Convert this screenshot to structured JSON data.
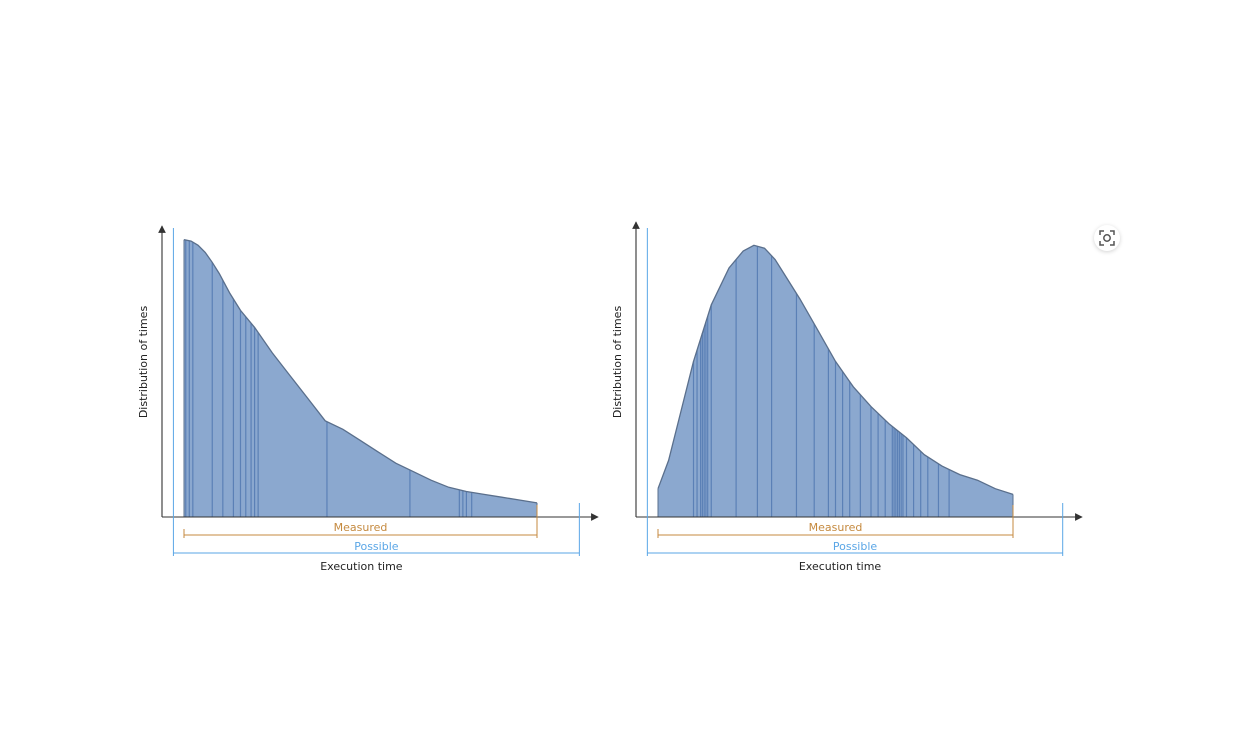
{
  "colors": {
    "fill": "#8ba8cf",
    "stripe": "#5b80b6",
    "outline": "#5a6f8c",
    "axis": "#333333",
    "measured": "#c58a3f",
    "possible": "#5aa6e6"
  },
  "lens_button": {
    "icon": "visual-search-icon"
  },
  "chart_data": [
    {
      "type": "area",
      "title": "",
      "xlabel": "Execution time",
      "ylabel": "Distribution of times",
      "xlim": [
        0,
        100
      ],
      "ylim": [
        0,
        100
      ],
      "grid": false,
      "x": [
        0,
        2,
        4,
        6,
        8,
        10,
        13,
        16,
        20,
        25,
        30,
        35,
        40,
        45,
        50,
        55,
        60,
        65,
        70,
        75,
        80,
        85,
        90,
        95,
        100
      ],
      "y": [
        98,
        97.5,
        96,
        93.5,
        90,
        86,
        79,
        73,
        67,
        58,
        50,
        42,
        34,
        31,
        27,
        23,
        19,
        16,
        13,
        10.5,
        9,
        8,
        7,
        6,
        5
      ],
      "stripes": [
        0.5,
        1.5,
        2.5,
        8,
        11,
        14,
        16,
        17.5,
        19,
        20,
        21,
        40.5,
        64,
        78,
        79,
        80,
        81.5
      ],
      "measured": {
        "label": "Measured",
        "range": [
          0,
          100
        ]
      },
      "possible": {
        "label": "Possible",
        "range": [
          -3,
          112
        ]
      }
    },
    {
      "type": "area",
      "title": "",
      "xlabel": "Execution time",
      "ylabel": "Distribution of times",
      "xlim": [
        0,
        100
      ],
      "ylim": [
        0,
        100
      ],
      "grid": false,
      "x": [
        0,
        3,
        6,
        10,
        15,
        20,
        24,
        27,
        30,
        33,
        36,
        40,
        45,
        50,
        55,
        60,
        65,
        70,
        75,
        80,
        85,
        90,
        95,
        100
      ],
      "y": [
        10,
        20,
        35,
        55,
        75,
        88,
        94,
        96,
        95,
        91,
        85,
        77,
        66,
        55,
        46,
        39,
        33,
        28,
        22,
        18,
        15,
        13,
        10,
        8
      ],
      "stripes": [
        10,
        11,
        12,
        12.5,
        13,
        13.5,
        14,
        15,
        22,
        28,
        32,
        39,
        44,
        48,
        50,
        52,
        54,
        57,
        60,
        62,
        64,
        66,
        66.5,
        67,
        67.5,
        68,
        68.5,
        69,
        70,
        72,
        74,
        76,
        79,
        82
      ],
      "measured": {
        "label": "Measured",
        "range": [
          0,
          100
        ]
      },
      "possible": {
        "label": "Possible",
        "range": [
          -3,
          114
        ]
      }
    }
  ]
}
